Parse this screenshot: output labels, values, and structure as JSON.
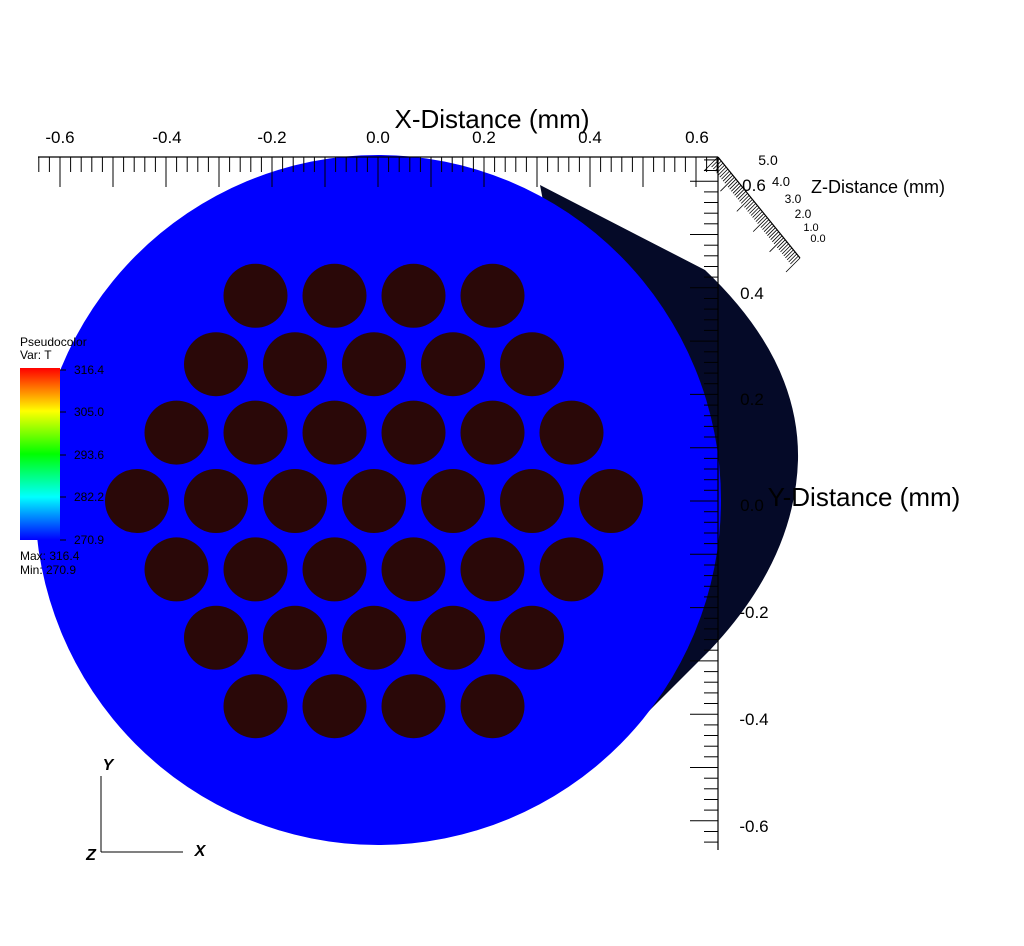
{
  "axes": {
    "x": {
      "title": "X-Distance (mm)",
      "tick_labels": [
        "-0.6",
        "-0.4",
        "-0.2",
        "0.0",
        "0.2",
        "0.4",
        "0.6"
      ],
      "tick_values": [
        -0.6,
        -0.4,
        -0.2,
        0.0,
        0.2,
        0.4,
        0.6
      ]
    },
    "y": {
      "title": "Y-Distance (mm)",
      "tick_labels": [
        "0.6",
        "0.4",
        "0.2",
        "0.0",
        "-0.2",
        "-0.4",
        "-0.6"
      ],
      "tick_values": [
        0.6,
        0.4,
        0.2,
        0.0,
        -0.2,
        -0.4,
        -0.6
      ]
    },
    "z": {
      "title": "Z-Distance (mm)",
      "tick_labels": [
        "5.0",
        "4.0",
        "3.0",
        "2.0",
        "1.0",
        "0.0"
      ]
    }
  },
  "legend": {
    "plot_type": "Pseudocolor",
    "variable": "Var: T",
    "tick_labels": [
      "316.4",
      "305.0",
      "293.6",
      "282.2",
      "270.9"
    ],
    "max_text": "Max: 316.4",
    "min_text": "Min: 270.9",
    "colormap": [
      "#ff0000",
      "#ffff00",
      "#00ff00",
      "#00ffff",
      "#0000ff"
    ]
  },
  "triad": {
    "x_label": "X",
    "y_label": "Y",
    "z_label": "Z"
  },
  "colors": {
    "matrix": "#0000ff",
    "fiber": "#2a0808",
    "side_surface": "#050a28",
    "axis": "#000000",
    "background": "#ffffff"
  },
  "fibers": {
    "count": 37,
    "rings": [
      1,
      6,
      12,
      18
    ]
  }
}
